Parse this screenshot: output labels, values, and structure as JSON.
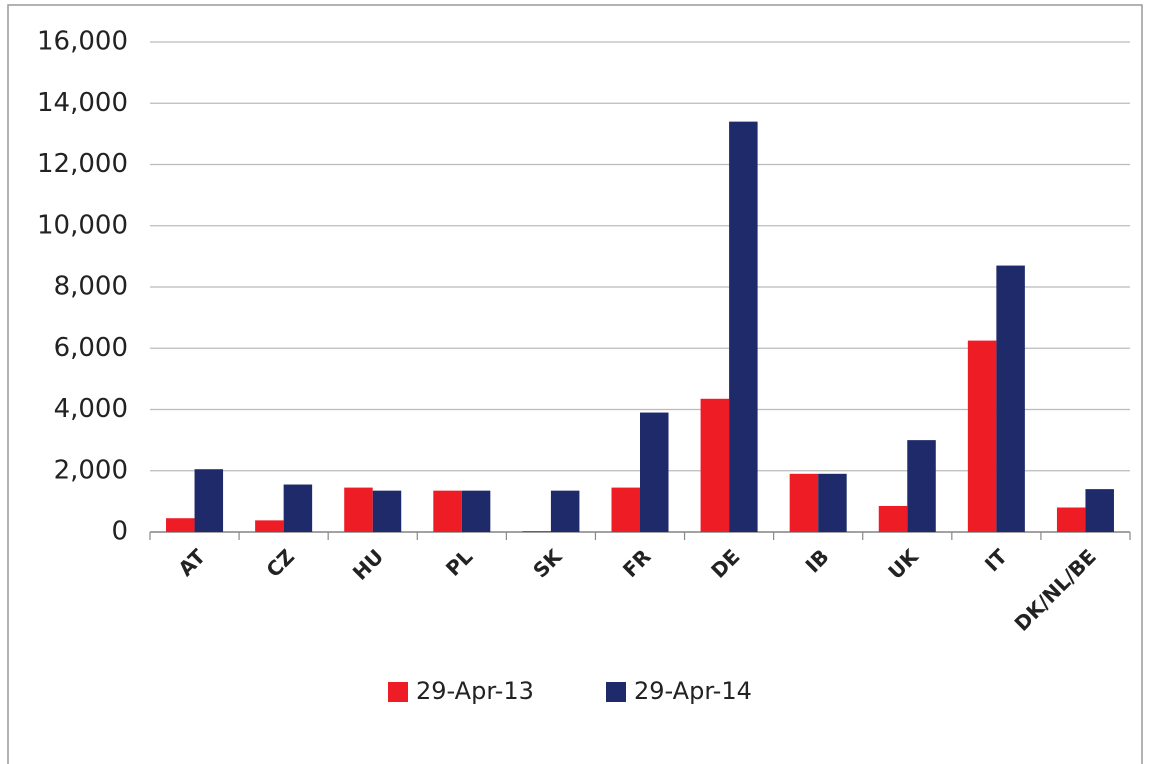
{
  "chart_data": {
    "type": "bar",
    "categories": [
      "AT",
      "CZ",
      "HU",
      "PL",
      "SK",
      "FR",
      "DE",
      "IB",
      "UK",
      "IT",
      "DK/NL/BE"
    ],
    "series": [
      {
        "name": "29-Apr-13",
        "color": "#ee1c25",
        "values": [
          450,
          380,
          1450,
          1350,
          30,
          1450,
          4350,
          1900,
          850,
          6250,
          800
        ]
      },
      {
        "name": "29-Apr-14",
        "color": "#1f2a6b",
        "values": [
          2050,
          1550,
          1350,
          1350,
          1350,
          3900,
          13400,
          1900,
          3000,
          8700,
          1400
        ]
      }
    ],
    "ylim": [
      0,
      16000
    ],
    "yticks": [
      0,
      {
        "value": 2000,
        "label": "2,000"
      },
      {
        "value": 4000,
        "label": "4,000"
      },
      {
        "value": 6000,
        "label": "6,000"
      },
      {
        "value": 8000,
        "label": "8,000"
      },
      {
        "value": 10000,
        "label": "10,000"
      },
      {
        "value": 12000,
        "label": "12,000"
      },
      {
        "value": 14000,
        "label": "14,000"
      },
      {
        "value": 16000,
        "label": "16,000"
      }
    ],
    "grid": true,
    "legend": "bottom"
  }
}
